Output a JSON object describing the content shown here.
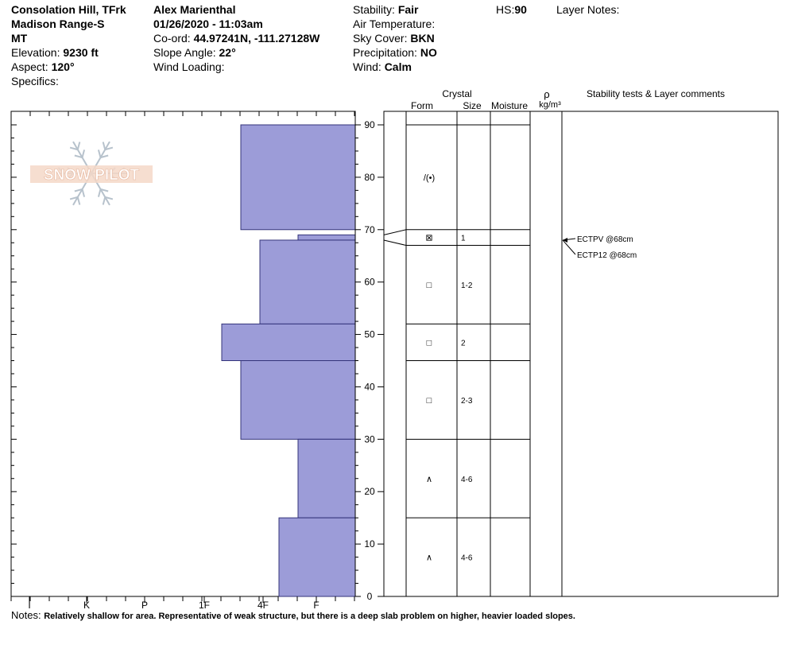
{
  "header": {
    "location": "Consolation Hill, TFrk",
    "range": "Madison Range-S",
    "state": "MT",
    "elevation_label": "Elevation:",
    "elevation_value": "9230 ft",
    "aspect_label": "Aspect:",
    "aspect_value": "120°",
    "specifics_label": "Specifics:",
    "observer": "Alex Marienthal",
    "datetime": "01/26/2020 - 11:03am",
    "coord_label": "Co-ord:",
    "coord_value": "44.97241N, -111.27128W",
    "slope_label": "Slope Angle:",
    "slope_value": "22°",
    "wind_loading_label": "Wind Loading:",
    "stability_label": "Stability:",
    "stability_value": "Fair",
    "air_temp_label": "Air Temperature:",
    "sky_label": "Sky Cover:",
    "sky_value": "BKN",
    "precip_label": "Precipitation:",
    "precip_value": "NO",
    "wind_label": "Wind:",
    "wind_value": "Calm",
    "hs_label": "HS:",
    "hs_value": "90",
    "layer_notes_label": "Layer Notes:"
  },
  "columns": {
    "crystal": "Crystal",
    "form": "Form",
    "size": "Size",
    "moisture": "Moisture",
    "rho": "ρ",
    "density_unit": "kg/m³",
    "stability_comments": "Stability tests & Layer comments"
  },
  "logo_text": "SNOW PILOT",
  "notes": {
    "label": "Notes:",
    "text": "Relatively shallow for area. Representative of weak structure, but there is a deep slab problem on higher, heavier loaded slopes."
  },
  "colors": {
    "bar_fill": "#9c9cd8",
    "bar_stroke": "#33337a",
    "logo": "#b7c2cc",
    "logo_text": "#f0c8b4"
  },
  "chart_data": {
    "type": "bar",
    "y_label": "",
    "ylim": [
      0,
      90
    ],
    "y_ticks": [
      0,
      10,
      20,
      30,
      40,
      50,
      60,
      70,
      80,
      90
    ],
    "hardness_categories": [
      "I",
      "K",
      "P",
      "1F",
      "4F",
      "F"
    ],
    "hardness_layers": [
      {
        "bottom": 70,
        "top": 90,
        "hardness": "4F"
      },
      {
        "bottom": 68,
        "top": 69,
        "hardness": "F"
      },
      {
        "bottom": 52,
        "top": 68,
        "hardness": "4F-"
      },
      {
        "bottom": 45,
        "top": 52,
        "hardness": "1F"
      },
      {
        "bottom": 30,
        "top": 45,
        "hardness": "4F"
      },
      {
        "bottom": 15,
        "top": 30,
        "hardness": "F"
      },
      {
        "bottom": 0,
        "top": 15,
        "hardness": "F+"
      }
    ],
    "crystal_layers": [
      {
        "bottom": 70,
        "top": 90,
        "form": "/(•)",
        "size": ""
      },
      {
        "bottom": 67,
        "top": 70,
        "form": "⊠",
        "size": "1"
      },
      {
        "bottom": 52,
        "top": 67,
        "form": "□",
        "size": "1-2"
      },
      {
        "bottom": 45,
        "top": 52,
        "form": "□",
        "size": "2"
      },
      {
        "bottom": 30,
        "top": 45,
        "form": "□",
        "size": "2-3"
      },
      {
        "bottom": 15,
        "top": 30,
        "form": "∧",
        "size": "4-6"
      },
      {
        "bottom": 0,
        "top": 15,
        "form": "∧",
        "size": "4-6"
      }
    ],
    "stability_tests": [
      {
        "label": "ECTPV @68cm",
        "depth": 68
      },
      {
        "label": "ECTP12 @68cm",
        "depth": 68
      }
    ]
  }
}
